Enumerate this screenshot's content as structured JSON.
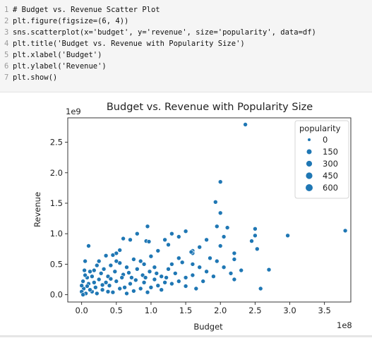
{
  "code_cell": {
    "lines": [
      {
        "no": "1",
        "text": "# Budget vs. Revenue Scatter Plot"
      },
      {
        "no": "2",
        "text": "plt.figure(figsize=(6, 4))"
      },
      {
        "no": "3",
        "text": "sns.scatterplot(x='budget', y='revenue', size='popularity', data=df)"
      },
      {
        "no": "4",
        "text": "plt.title('Budget vs. Revenue with Popularity Size')"
      },
      {
        "no": "5",
        "text": "plt.xlabel('Budget')"
      },
      {
        "no": "6",
        "text": "plt.ylabel('Revenue')"
      },
      {
        "no": "7",
        "text": "plt.show()"
      }
    ]
  },
  "chart_data": {
    "type": "scatter",
    "title": "Budget vs. Revenue with Popularity Size",
    "xlabel": "Budget",
    "ylabel": "Revenue",
    "x_offset_label": "1e8",
    "y_offset_label": "1e9",
    "xlim": [
      -0.2,
      3.88
    ],
    "ylim": [
      -0.12,
      2.9
    ],
    "xticks": [
      0.0,
      0.5,
      1.0,
      1.5,
      2.0,
      2.5,
      3.0,
      3.5
    ],
    "xtick_labels": [
      "0.0",
      "0.5",
      "1.0",
      "1.5",
      "2.0",
      "2.5",
      "3.0",
      "3.5"
    ],
    "yticks": [
      0.0,
      0.5,
      1.0,
      1.5,
      2.0,
      2.5
    ],
    "ytick_labels": [
      "0.0",
      "0.5",
      "1.0",
      "1.5",
      "2.0",
      "2.5"
    ],
    "grid": false,
    "color": "#1f77b4",
    "legend": {
      "title": "popularity",
      "placement": "top-right",
      "entries": [
        {
          "label": "0",
          "size": 0
        },
        {
          "label": "150",
          "size": 150
        },
        {
          "label": "300",
          "size": 300
        },
        {
          "label": "450",
          "size": 450
        },
        {
          "label": "600",
          "size": 600
        }
      ]
    },
    "points": [
      {
        "x": 2.36,
        "y": 2.79
      },
      {
        "x": 2.0,
        "y": 1.85
      },
      {
        "x": 1.93,
        "y": 1.52
      },
      {
        "x": 2.0,
        "y": 1.34
      },
      {
        "x": 3.8,
        "y": 1.05
      },
      {
        "x": 2.97,
        "y": 0.97
      },
      {
        "x": 2.5,
        "y": 1.08
      },
      {
        "x": 2.5,
        "y": 0.97
      },
      {
        "x": 2.45,
        "y": 0.88
      },
      {
        "x": 2.53,
        "y": 0.75
      },
      {
        "x": 2.7,
        "y": 0.41
      },
      {
        "x": 2.58,
        "y": 0.1
      },
      {
        "x": 2.2,
        "y": 0.68
      },
      {
        "x": 2.2,
        "y": 0.58
      },
      {
        "x": 2.1,
        "y": 1.1
      },
      {
        "x": 1.95,
        "y": 1.12
      },
      {
        "x": 2.05,
        "y": 0.95
      },
      {
        "x": 2.0,
        "y": 0.8
      },
      {
        "x": 1.95,
        "y": 0.55
      },
      {
        "x": 2.05,
        "y": 0.45
      },
      {
        "x": 1.8,
        "y": 0.9
      },
      {
        "x": 1.7,
        "y": 0.78
      },
      {
        "x": 1.6,
        "y": 0.72
      },
      {
        "x": 1.6,
        "y": 0.68
      },
      {
        "x": 1.58,
        "y": 0.7
      },
      {
        "x": 1.5,
        "y": 1.04
      },
      {
        "x": 1.4,
        "y": 0.95
      },
      {
        "x": 1.4,
        "y": 0.6
      },
      {
        "x": 1.3,
        "y": 1.0
      },
      {
        "x": 1.25,
        "y": 0.82
      },
      {
        "x": 1.2,
        "y": 0.9
      },
      {
        "x": 1.1,
        "y": 0.72
      },
      {
        "x": 1.0,
        "y": 0.63
      },
      {
        "x": 0.93,
        "y": 0.88
      },
      {
        "x": 0.97,
        "y": 0.87
      },
      {
        "x": 0.95,
        "y": 1.12
      },
      {
        "x": 0.9,
        "y": 0.5
      },
      {
        "x": 0.8,
        "y": 1.0
      },
      {
        "x": 0.75,
        "y": 0.58
      },
      {
        "x": 0.7,
        "y": 0.9
      },
      {
        "x": 0.6,
        "y": 0.92
      },
      {
        "x": 0.55,
        "y": 0.73
      },
      {
        "x": 0.5,
        "y": 0.68
      },
      {
        "x": 0.45,
        "y": 0.65
      },
      {
        "x": 0.35,
        "y": 0.64
      },
      {
        "x": 0.1,
        "y": 0.8
      },
      {
        "x": 1.45,
        "y": 0.53
      },
      {
        "x": 1.05,
        "y": 0.45
      },
      {
        "x": 1.7,
        "y": 0.45
      },
      {
        "x": 1.8,
        "y": 0.38
      },
      {
        "x": 1.9,
        "y": 0.3
      },
      {
        "x": 2.15,
        "y": 0.35
      },
      {
        "x": 2.2,
        "y": 0.25
      },
      {
        "x": 1.75,
        "y": 0.22
      },
      {
        "x": 1.6,
        "y": 0.32
      },
      {
        "x": 1.5,
        "y": 0.28
      },
      {
        "x": 1.35,
        "y": 0.35
      },
      {
        "x": 1.25,
        "y": 0.42
      },
      {
        "x": 1.15,
        "y": 0.3
      },
      {
        "x": 1.05,
        "y": 0.25
      },
      {
        "x": 0.98,
        "y": 0.38
      },
      {
        "x": 0.88,
        "y": 0.32
      },
      {
        "x": 0.8,
        "y": 0.42
      },
      {
        "x": 0.72,
        "y": 0.28
      },
      {
        "x": 0.65,
        "y": 0.45
      },
      {
        "x": 0.6,
        "y": 0.33
      },
      {
        "x": 0.55,
        "y": 0.52
      },
      {
        "x": 0.48,
        "y": 0.38
      },
      {
        "x": 0.42,
        "y": 0.48
      },
      {
        "x": 0.38,
        "y": 0.3
      },
      {
        "x": 0.32,
        "y": 0.42
      },
      {
        "x": 0.28,
        "y": 0.35
      },
      {
        "x": 0.22,
        "y": 0.48
      },
      {
        "x": 0.18,
        "y": 0.4
      },
      {
        "x": 0.15,
        "y": 0.3
      },
      {
        "x": 0.12,
        "y": 0.38
      },
      {
        "x": 0.08,
        "y": 0.28
      },
      {
        "x": 0.05,
        "y": 0.32
      },
      {
        "x": 0.02,
        "y": 0.22
      },
      {
        "x": 0.25,
        "y": 0.55
      },
      {
        "x": 0.5,
        "y": 0.22
      },
      {
        "x": 0.7,
        "y": 0.18
      },
      {
        "x": 0.9,
        "y": 0.2
      },
      {
        "x": 1.1,
        "y": 0.15
      },
      {
        "x": 1.3,
        "y": 0.18
      },
      {
        "x": 1.5,
        "y": 0.14
      },
      {
        "x": 1.4,
        "y": 0.22
      },
      {
        "x": 1.2,
        "y": 0.2
      },
      {
        "x": 1.0,
        "y": 0.12
      },
      {
        "x": 0.85,
        "y": 0.1
      },
      {
        "x": 0.62,
        "y": 0.12
      },
      {
        "x": 0.4,
        "y": 0.15
      },
      {
        "x": 0.2,
        "y": 0.12
      },
      {
        "x": 0.1,
        "y": 0.18
      },
      {
        "x": 0.03,
        "y": 0.1
      },
      {
        "x": 0.0,
        "y": 0.05
      },
      {
        "x": 0.06,
        "y": 0.02
      },
      {
        "x": 0.15,
        "y": 0.05
      },
      {
        "x": 0.3,
        "y": 0.08
      },
      {
        "x": 0.45,
        "y": 0.04
      },
      {
        "x": 0.55,
        "y": 0.1
      },
      {
        "x": 0.75,
        "y": 0.06
      },
      {
        "x": 0.95,
        "y": 0.04
      },
      {
        "x": 1.15,
        "y": 0.08
      },
      {
        "x": 0.35,
        "y": 0.2
      },
      {
        "x": 0.25,
        "y": 0.25
      },
      {
        "x": 0.12,
        "y": 0.08
      },
      {
        "x": 0.08,
        "y": 0.14
      },
      {
        "x": 0.18,
        "y": 0.2
      },
      {
        "x": 0.3,
        "y": 0.16
      },
      {
        "x": 0.42,
        "y": 0.26
      },
      {
        "x": 0.58,
        "y": 0.28
      },
      {
        "x": 0.68,
        "y": 0.36
      },
      {
        "x": 0.78,
        "y": 0.24
      },
      {
        "x": 0.92,
        "y": 0.28
      },
      {
        "x": 1.08,
        "y": 0.35
      },
      {
        "x": 1.22,
        "y": 0.28
      },
      {
        "x": 0.04,
        "y": 0.4
      },
      {
        "x": 0.0,
        "y": 0.15
      },
      {
        "x": 0.02,
        "y": 0.0
      },
      {
        "x": 0.22,
        "y": 0.02
      },
      {
        "x": 0.38,
        "y": 0.05
      },
      {
        "x": 0.65,
        "y": 0.02
      },
      {
        "x": 1.6,
        "y": 0.5
      },
      {
        "x": 1.85,
        "y": 0.6
      },
      {
        "x": 2.3,
        "y": 0.4
      },
      {
        "x": 1.65,
        "y": 0.1
      },
      {
        "x": 1.3,
        "y": 0.5
      },
      {
        "x": 0.5,
        "y": 0.55
      },
      {
        "x": 0.85,
        "y": 0.55
      },
      {
        "x": 0.05,
        "y": 0.55
      }
    ]
  }
}
